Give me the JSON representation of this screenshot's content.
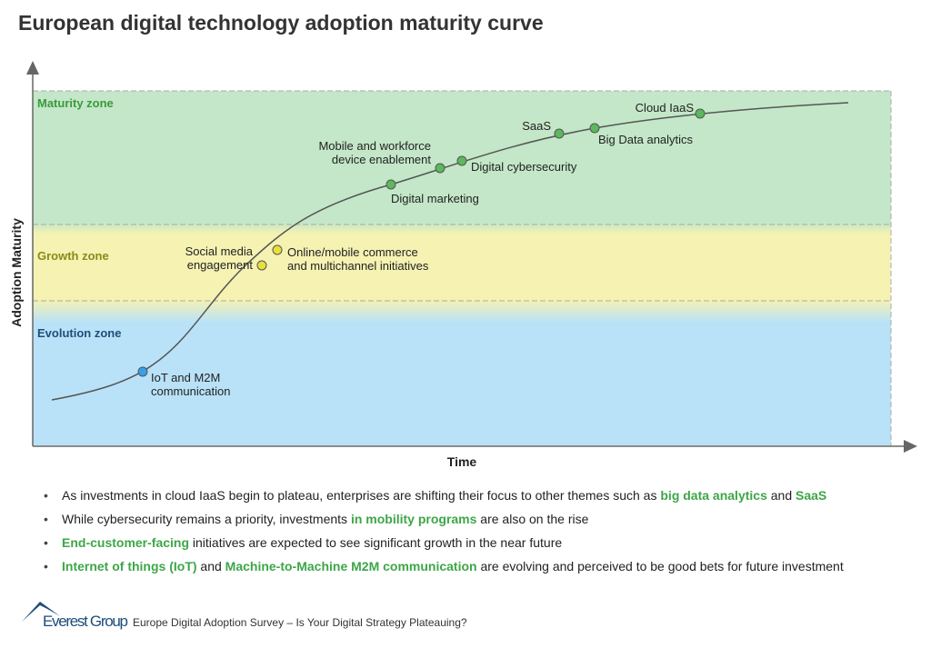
{
  "title": "European digital technology adoption maturity curve",
  "zones": [
    {
      "label": "Maturity zone"
    },
    {
      "label": "Growth zone"
    },
    {
      "label": "Evolution zone"
    }
  ],
  "axes": {
    "y_label": "Adoption Maturity",
    "x_label": "Time"
  },
  "nodes": [
    {
      "lines": [
        "IoT and M2M",
        "communication"
      ]
    },
    {
      "lines": [
        "Social media",
        "engagement"
      ]
    },
    {
      "lines": [
        "Online/mobile commerce",
        "and multichannel initiatives"
      ]
    },
    {
      "lines": [
        "Digital marketing"
      ]
    },
    {
      "lines": [
        "Mobile and workforce",
        "device enablement"
      ]
    },
    {
      "lines": [
        "Digital cybersecurity"
      ]
    },
    {
      "lines": [
        "SaaS"
      ]
    },
    {
      "lines": [
        "Big Data analytics"
      ]
    },
    {
      "lines": [
        "Cloud IaaS"
      ]
    }
  ],
  "bullets": [
    [
      {
        "text": "As investments in cloud IaaS begin to plateau, enterprises are shifting their focus to other themes such as ",
        "em": false
      },
      {
        "text": "big data analytics",
        "em": true
      },
      {
        "text": " and ",
        "em": false
      },
      {
        "text": "SaaS",
        "em": true
      }
    ],
    [
      {
        "text": "While cybersecurity remains a priority, investments ",
        "em": false
      },
      {
        "text": "in mobility programs",
        "em": true
      },
      {
        "text": " are also on the rise",
        "em": false
      }
    ],
    [
      {
        "text": "End-customer-facing",
        "em": true
      },
      {
        "text": " initiatives are expected to see significant growth in the near future",
        "em": false
      }
    ],
    [
      {
        "text": "Internet of things (IoT)",
        "em": true
      },
      {
        "text": " and ",
        "em": false
      },
      {
        "text": "Machine-to-Machine M2M communication",
        "em": true
      },
      {
        "text": " are evolving and perceived to be good bets for future investment",
        "em": false
      }
    ]
  ],
  "footer": {
    "brand": "Everest Group",
    "source": "Europe Digital Adoption Survey – Is Your Digital Strategy Plateauing?"
  }
}
